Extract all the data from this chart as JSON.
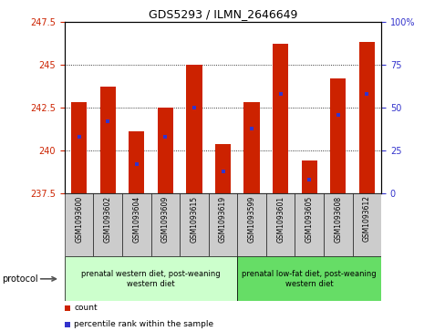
{
  "title": "GDS5293 / ILMN_2646649",
  "samples": [
    "GSM1093600",
    "GSM1093602",
    "GSM1093604",
    "GSM1093609",
    "GSM1093615",
    "GSM1093619",
    "GSM1093599",
    "GSM1093601",
    "GSM1093605",
    "GSM1093608",
    "GSM1093612"
  ],
  "bar_values": [
    242.8,
    243.7,
    241.1,
    242.5,
    245.0,
    240.4,
    242.8,
    246.2,
    239.4,
    244.2,
    246.3
  ],
  "percentile_values": [
    33,
    42,
    17,
    33,
    50,
    13,
    38,
    58,
    8,
    46,
    58
  ],
  "ymin": 237.5,
  "ymax": 247.5,
  "yticks": [
    237.5,
    240.0,
    242.5,
    245.0,
    247.5
  ],
  "ytick_labels": [
    "237.5",
    "240",
    "242.5",
    "245",
    "247.5"
  ],
  "right_yticks": [
    0,
    25,
    50,
    75,
    100
  ],
  "right_ytick_labels": [
    "0",
    "25",
    "50",
    "75",
    "100%"
  ],
  "bar_color": "#cc2200",
  "percentile_color": "#3333cc",
  "group1_label": "prenatal western diet, post-weaning\nwestern diet",
  "group2_label": "prenatal low-fat diet, post-weaning\nwestern diet",
  "group1_count": 6,
  "group2_count": 5,
  "protocol_label": "protocol",
  "legend_count": "count",
  "legend_percentile": "percentile rank within the sample",
  "bar_width": 0.55,
  "group1_bg": "#ccffcc",
  "group2_bg": "#66dd66",
  "sample_bg": "#cccccc",
  "left_color": "#cc2200",
  "right_color": "#3333cc",
  "grid_yticks": [
    240.0,
    242.5,
    245.0
  ]
}
